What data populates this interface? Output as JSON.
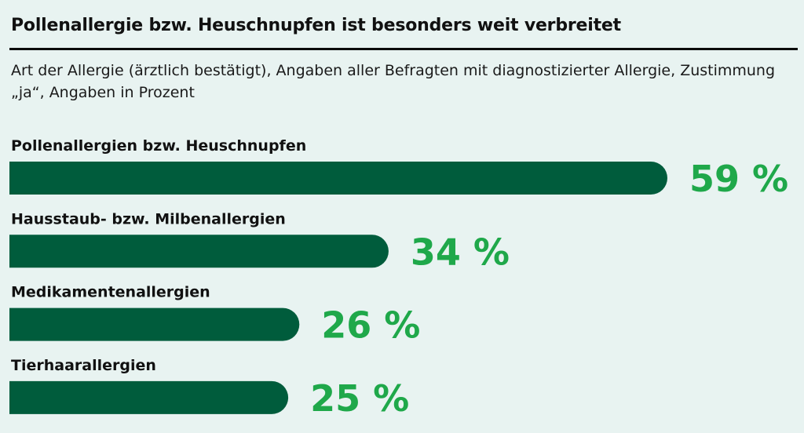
{
  "title": "Pollenallergie bzw. Heuschnupfen ist besonders weit verbreitet",
  "subtitle": "Art der Allergie (ärztlich bestätigt), Angaben aller Befragten mit diagnostizierter Allergie, Zustimmung „ja“, Angaben in Prozent",
  "colors": {
    "bar": "#005c3c",
    "value": "#1fa84a",
    "background": "#e8f3f1"
  },
  "chart_data": {
    "type": "bar",
    "orientation": "horizontal",
    "categories": [
      "Pollenallergien bzw. Heuschnupfen",
      "Hausstaub- bzw. Milbenallergien",
      "Medikamentenallergien",
      "Tierhaarallergien"
    ],
    "values": [
      59,
      34,
      26,
      25
    ],
    "value_labels": [
      "59 %",
      "34 %",
      "26 %",
      "25 %"
    ],
    "unit": "%",
    "xlim": [
      0,
      59
    ],
    "grid": false,
    "legend": "none"
  }
}
